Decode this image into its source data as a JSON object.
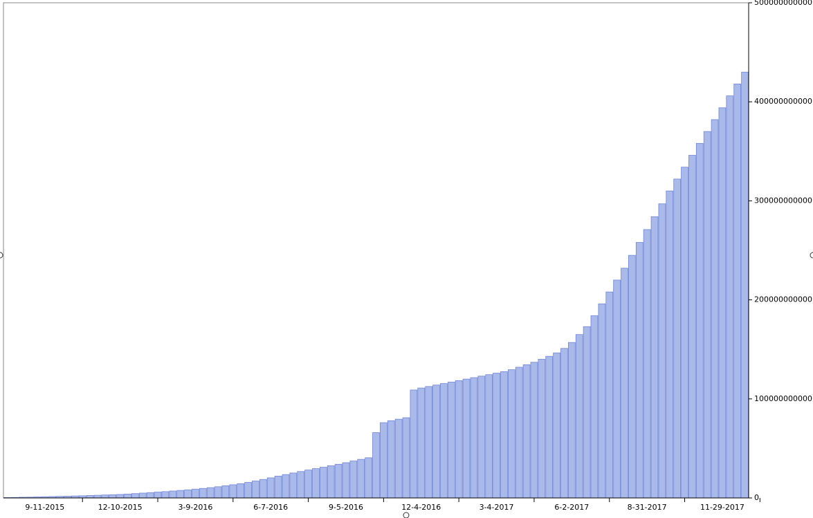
{
  "chart_data": {
    "type": "bar",
    "categories": [
      null,
      null,
      null,
      null,
      null,
      "9-11-2015",
      null,
      null,
      null,
      null,
      null,
      null,
      null,
      null,
      null,
      "12-10-2015",
      null,
      null,
      null,
      null,
      null,
      null,
      null,
      null,
      null,
      "3-9-2016",
      null,
      null,
      null,
      null,
      null,
      null,
      null,
      null,
      null,
      "6-7-2016",
      null,
      null,
      null,
      null,
      null,
      null,
      null,
      null,
      null,
      "9-5-2016",
      null,
      null,
      null,
      null,
      null,
      null,
      null,
      null,
      null,
      "12-4-2016",
      null,
      null,
      null,
      null,
      null,
      null,
      null,
      null,
      null,
      "3-4-2017",
      null,
      null,
      null,
      null,
      null,
      null,
      null,
      null,
      null,
      "6-2-2017",
      null,
      null,
      null,
      null,
      null,
      null,
      null,
      null,
      null,
      "8-31-2017",
      null,
      null,
      null,
      null,
      null,
      null,
      null,
      null,
      null,
      "11-29-2017",
      null,
      null,
      null
    ],
    "values": [
      400000000,
      500000000,
      700000000,
      800000000,
      1000000000,
      1200000000,
      1400000000,
      1600000000,
      1800000000,
      2000000000,
      2200000000,
      2500000000,
      2700000000,
      3000000000,
      3200000000,
      3500000000,
      3900000000,
      4400000000,
      4900000000,
      5400000000,
      5900000000,
      6400000000,
      7000000000,
      7600000000,
      8200000000,
      8900000000,
      9600000000,
      10400000000,
      11300000000,
      12300000000,
      13300000000,
      14400000000,
      15700000000,
      17100000000,
      18700000000,
      20300000000,
      22000000000,
      23600000000,
      25200000000,
      26700000000,
      28200000000,
      29600000000,
      31000000000,
      32500000000,
      34000000000,
      35600000000,
      37300000000,
      39000000000,
      40600000000,
      66000000000,
      76000000000,
      78000000000,
      79500000000,
      81000000000,
      109000000000,
      111000000000,
      112500000000,
      114000000000,
      115500000000,
      117000000000,
      118500000000,
      120000000000,
      121500000000,
      123000000000,
      124500000000,
      126000000000,
      127500000000,
      129500000000,
      132000000000,
      134500000000,
      137000000000,
      140000000000,
      143000000000,
      146500000000,
      151000000000,
      157000000000,
      165000000000,
      173000000000,
      184000000000,
      196000000000,
      208000000000,
      220000000000,
      232000000000,
      245000000000,
      258000000000,
      271000000000,
      284000000000,
      297000000000,
      310000000000,
      322000000000,
      334000000000,
      346000000000,
      358000000000,
      370000000000,
      382000000000,
      394000000000,
      406000000000,
      418000000000,
      430000000000
    ],
    "color": "#a9b9ea",
    "ylim": [
      0,
      500000000000
    ],
    "yticks": [
      0,
      100000000000,
      200000000000,
      300000000000,
      400000000000,
      500000000000
    ]
  }
}
